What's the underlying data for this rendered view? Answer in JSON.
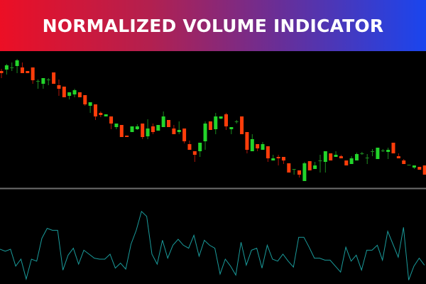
{
  "banner": {
    "title": "NORMALIZED VOLUME INDICATOR"
  },
  "colors": {
    "bull": "#22d42a",
    "bear": "#ff3d0a",
    "doji": "#1f8f22",
    "bull_wick": "#1a8a1e",
    "bear_wick": "#b0150a",
    "indicator": "#1a9b9b",
    "separator": "#6e6e6e"
  },
  "chart_data": {
    "type": "candlestick",
    "price_panel": {
      "candles": [
        [
          200,
          203,
          190,
          197
        ],
        [
          202,
          210,
          195,
          208
        ],
        [
          205,
          212,
          200,
          205
        ],
        [
          207,
          217,
          197,
          215
        ],
        [
          205,
          212,
          197,
          197
        ],
        [
          200,
          200,
          197,
          197
        ],
        [
          205,
          205,
          182,
          187
        ],
        [
          186,
          188,
          175,
          186
        ],
        [
          182,
          190,
          175,
          190
        ],
        [
          188,
          190,
          180,
          188
        ],
        [
          198,
          198,
          182,
          182
        ],
        [
          180,
          188,
          165,
          175
        ],
        [
          178,
          178,
          163,
          163
        ],
        [
          165,
          170,
          160,
          170
        ],
        [
          167,
          175,
          163,
          173
        ],
        [
          170,
          170,
          163,
          163
        ],
        [
          166,
          166,
          151,
          153
        ],
        [
          151,
          156,
          141,
          156
        ],
        [
          153,
          153,
          131,
          136
        ],
        [
          141,
          143,
          135,
          138
        ],
        [
          136,
          139,
          136,
          139
        ],
        [
          136,
          136,
          118,
          126
        ],
        [
          121,
          126,
          118,
          126
        ],
        [
          124,
          124,
          107,
          107
        ],
        [
          109,
          109,
          107,
          107
        ],
        [
          114,
          122,
          114,
          122
        ],
        [
          118,
          125,
          117,
          122
        ],
        [
          126,
          126,
          104,
          107
        ],
        [
          108,
          132,
          104,
          119
        ],
        [
          122,
          126,
          111,
          114
        ],
        [
          116,
          124,
          116,
          124
        ],
        [
          121,
          143,
          121,
          136
        ],
        [
          131,
          131,
          121,
          121
        ],
        [
          119,
          124,
          111,
          111
        ],
        [
          114,
          129,
          111,
          117
        ],
        [
          119,
          119,
          98,
          101
        ],
        [
          97,
          102,
          89,
          89
        ],
        [
          87,
          87,
          72,
          82
        ],
        [
          87,
          99,
          79,
          99
        ],
        [
          101,
          129,
          89,
          126
        ],
        [
          129,
          129,
          117,
          117
        ],
        [
          118,
          141,
          111,
          136
        ],
        [
          133,
          136,
          132,
          136
        ],
        [
          139,
          141,
          117,
          122
        ],
        [
          118,
          121,
          111,
          121
        ],
        [
          129,
          131,
          126,
          129
        ],
        [
          136,
          136,
          111,
          111
        ],
        [
          114,
          114,
          84,
          89
        ],
        [
          87,
          111,
          87,
          104
        ],
        [
          97,
          97,
          87,
          91
        ],
        [
          89,
          100,
          89,
          97
        ],
        [
          94,
          94,
          72,
          77
        ],
        [
          74,
          82,
          74,
          77
        ],
        [
          79,
          82,
          67,
          77
        ],
        [
          79,
          79,
          69,
          74
        ],
        [
          70,
          70,
          57,
          57
        ],
        [
          62,
          62,
          54,
          62
        ],
        [
          60,
          60,
          50,
          54
        ],
        [
          45,
          72,
          45,
          70
        ],
        [
          73,
          73,
          60,
          60
        ],
        [
          62,
          72,
          62,
          67
        ],
        [
          74,
          82,
          57,
          74
        ],
        [
          72,
          87,
          57,
          87
        ],
        [
          84,
          84,
          74,
          74
        ],
        [
          79,
          87,
          79,
          82
        ],
        [
          80,
          82,
          77,
          77
        ],
        [
          74,
          74,
          67,
          67
        ],
        [
          69,
          80,
          69,
          77
        ],
        [
          74,
          85,
          74,
          83
        ],
        [
          84,
          86,
          82,
          84
        ],
        [
          78,
          83,
          69,
          78
        ],
        [
          87,
          90,
          80,
          87
        ],
        [
          76,
          92,
          76,
          92
        ],
        [
          88,
          90,
          86,
          88
        ],
        [
          86,
          92,
          76,
          89
        ],
        [
          99,
          99,
          84,
          84
        ],
        [
          80,
          84,
          77,
          77
        ],
        [
          74,
          76,
          69,
          69
        ],
        [
          68,
          68,
          68,
          68
        ],
        [
          64,
          67,
          62,
          67
        ],
        [
          65,
          65,
          61,
          61
        ],
        [
          67,
          67,
          54,
          54
        ]
      ],
      "candle_order": "open,high,low,close"
    },
    "indicator_panel": {
      "name": "Normalized Volume",
      "values": [
        35,
        33,
        35,
        18,
        25,
        5,
        25,
        23,
        46,
        56,
        54,
        54,
        14,
        29,
        36,
        20,
        34,
        30,
        26,
        25,
        25,
        30,
        16,
        21,
        15,
        40,
        54,
        73,
        68,
        30,
        20,
        44,
        26,
        39,
        45,
        39,
        36,
        49,
        28,
        44,
        39,
        36,
        10,
        25,
        18,
        9,
        42,
        19,
        34,
        36,
        16,
        39,
        25,
        23,
        30,
        23,
        17,
        47,
        47,
        37,
        26,
        26,
        24,
        24,
        18,
        12,
        37,
        23,
        29,
        14,
        34,
        34,
        39,
        24,
        53,
        40,
        27,
        57,
        4,
        18,
        26,
        19
      ]
    }
  }
}
